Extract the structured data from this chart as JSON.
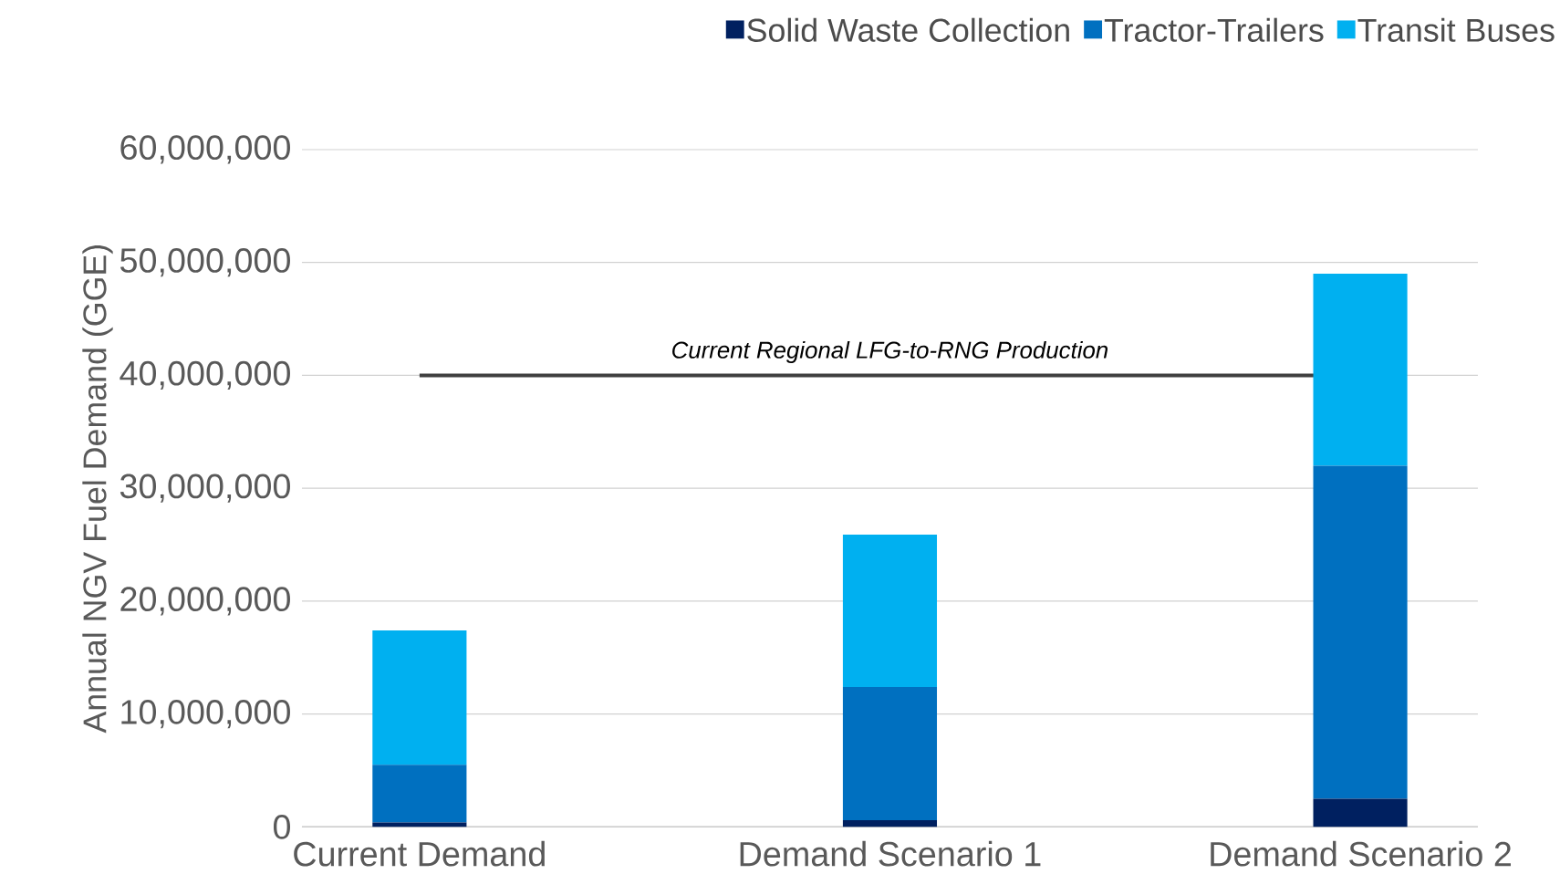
{
  "chart_data": {
    "type": "bar",
    "stacked": true,
    "ylabel": "Annual NGV Fuel Demand (GGE)",
    "categories": [
      "Current Demand",
      "Demand Scenario 1",
      "Demand Scenario 2"
    ],
    "series": [
      {
        "name": "Solid Waste Collection",
        "color": "#002060",
        "values": [
          400000,
          600000,
          2500000
        ]
      },
      {
        "name": "Tractor-Trailers",
        "color": "#0070c0",
        "values": [
          5100000,
          11800000,
          29500000
        ]
      },
      {
        "name": "Transit Buses",
        "color": "#00b0f0",
        "values": [
          11900000,
          13500000,
          17000000
        ]
      }
    ],
    "ylim": [
      0,
      60000000
    ],
    "yticks": [
      0,
      {
        "value": 10000000,
        "label": "10,000,000"
      },
      {
        "value": 20000000,
        "label": "20,000,000"
      },
      {
        "value": 30000000,
        "label": "30,000,000"
      },
      {
        "value": 40000000,
        "label": "40,000,000"
      },
      {
        "value": 50000000,
        "label": "50,000,000"
      },
      {
        "value": 60000000,
        "label": "60,000,000"
      }
    ],
    "grid": "y",
    "legend": "top right",
    "ref_lines": [
      {
        "axis": "y",
        "value": 40000000,
        "label": "Current Regional LFG-to-RNG Production",
        "color": "#404040"
      }
    ]
  }
}
